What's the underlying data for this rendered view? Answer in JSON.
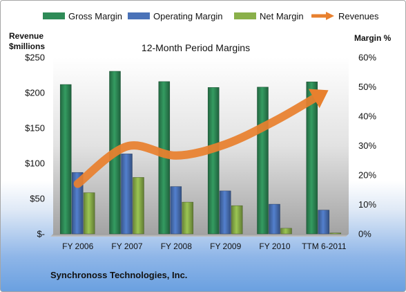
{
  "chart_data": {
    "type": "bar",
    "title": "12-Month Period Margins",
    "categories": [
      "FY 2006",
      "FY 2007",
      "FY 2008",
      "FY 2009",
      "FY 2010",
      "TTM 6-2011"
    ],
    "left_axis": {
      "label_line1": "Revenue",
      "label_line2": "$millions",
      "ylim": [
        0,
        250
      ],
      "ticks": [
        0,
        50,
        100,
        150,
        200,
        250
      ],
      "tick_labels": [
        "$-",
        "$50",
        "$100",
        "$150",
        "$200",
        "$250"
      ]
    },
    "right_axis": {
      "label": "Margin %",
      "ylim": [
        0,
        60
      ],
      "ticks": [
        0,
        10,
        20,
        30,
        40,
        50,
        60
      ],
      "tick_labels": [
        "0%",
        "10%",
        "20%",
        "30%",
        "40%",
        "50%",
        "60%"
      ]
    },
    "series": [
      {
        "name": "Gross Margin",
        "axis": "right",
        "kind": "bar",
        "color": "#2e8b57",
        "values": [
          50.8,
          55.3,
          51.8,
          49.8,
          49.9,
          51.7
        ]
      },
      {
        "name": "Operating Margin",
        "axis": "right",
        "kind": "bar",
        "color": "#4a72b8",
        "values": [
          20.9,
          27.2,
          16.1,
          14.6,
          10.1,
          8.1
        ]
      },
      {
        "name": "Net Margin",
        "axis": "right",
        "kind": "bar",
        "color": "#8ab04a",
        "values": [
          14.0,
          19.2,
          10.8,
          9.6,
          1.9,
          0.3
        ]
      },
      {
        "name": "Revenues",
        "axis": "left",
        "kind": "arrow-line",
        "color": "#e8802e",
        "values": [
          71,
          124,
          111,
          127,
          160,
          200
        ]
      }
    ],
    "legend_position": "top",
    "grid": false
  },
  "footer": {
    "company": "Synchronoss Technologies, Inc."
  }
}
